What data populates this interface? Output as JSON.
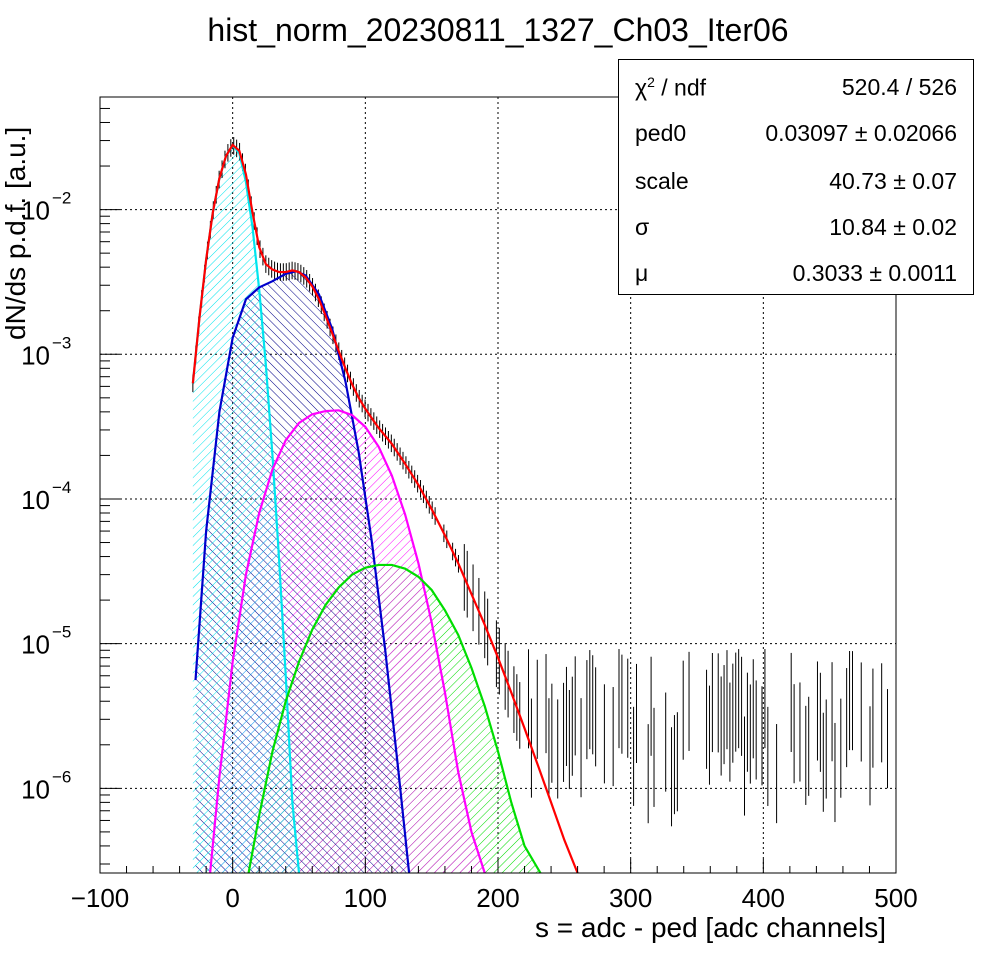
{
  "chart_data": {
    "type": "line",
    "title": "hist_norm_20230811_1327_Ch03_Iter06",
    "xlabel": "s = adc - ped [adc channels]",
    "ylabel": "dN/ds p.d.f. [a.u.]",
    "xlim": [
      -100,
      500
    ],
    "ylim": [
      2.6e-07,
      0.06
    ],
    "y_scale": "log",
    "grid": true,
    "x_ticks": [
      "−100",
      "0",
      "100",
      "200",
      "300",
      "400",
      "500"
    ],
    "y_ticks": [
      {
        "base": "10",
        "exp": "−2"
      },
      {
        "base": "10",
        "exp": "−3"
      },
      {
        "base": "10",
        "exp": "−4"
      },
      {
        "base": "10",
        "exp": "−5"
      },
      {
        "base": "10",
        "exp": "−6"
      }
    ],
    "series": [
      {
        "color": "#ff0000",
        "kind": "total fit",
        "points": [
          [
            -30,
            0.00063
          ],
          [
            -25,
            0.0018
          ],
          [
            -20,
            0.0045
          ],
          [
            -15,
            0.0095
          ],
          [
            -10,
            0.0165
          ],
          [
            -5,
            0.0235
          ],
          [
            0,
            0.028
          ],
          [
            5,
            0.0255
          ],
          [
            10,
            0.0175
          ],
          [
            15,
            0.0095
          ],
          [
            20,
            0.0055
          ],
          [
            25,
            0.0042
          ],
          [
            30,
            0.00385
          ],
          [
            35,
            0.0037
          ],
          [
            40,
            0.0037
          ],
          [
            45,
            0.0038
          ],
          [
            50,
            0.0037
          ],
          [
            55,
            0.0034
          ],
          [
            60,
            0.00295
          ],
          [
            65,
            0.0024
          ],
          [
            70,
            0.00185
          ],
          [
            75,
            0.0014
          ],
          [
            80,
            0.00105
          ],
          [
            85,
            0.0008
          ],
          [
            90,
            0.00062
          ],
          [
            95,
            0.0005
          ],
          [
            100,
            0.00042
          ],
          [
            105,
            0.00036
          ],
          [
            110,
            0.00031
          ],
          [
            120,
            0.00024
          ],
          [
            130,
            0.000175
          ],
          [
            140,
            0.000125
          ],
          [
            150,
            8.5e-05
          ],
          [
            160,
            5.6e-05
          ],
          [
            170,
            3.6e-05
          ],
          [
            180,
            2.2e-05
          ],
          [
            190,
            1.35e-05
          ],
          [
            200,
            8e-06
          ],
          [
            210,
            4.6e-06
          ],
          [
            220,
            2.6e-06
          ],
          [
            230,
            1.45e-06
          ],
          [
            240,
            8e-07
          ],
          [
            250,
            4.4e-07
          ],
          [
            260,
            2.6e-07
          ]
        ]
      },
      {
        "color": "#00e5ee",
        "kind": "0 p.e. component",
        "fill": "hatched",
        "points": [
          [
            -30,
            0.00063
          ],
          [
            -25,
            0.0018
          ],
          [
            -20,
            0.0045
          ],
          [
            -15,
            0.0095
          ],
          [
            -10,
            0.0165
          ],
          [
            -5,
            0.0235
          ],
          [
            0,
            0.0278
          ],
          [
            5,
            0.0245
          ],
          [
            10,
            0.0155
          ],
          [
            15,
            0.0075
          ],
          [
            20,
            0.0028
          ],
          [
            25,
            0.00085
          ],
          [
            30,
            0.0002
          ],
          [
            35,
            3.8e-05
          ],
          [
            40,
            6e-06
          ],
          [
            45,
            8e-07
          ],
          [
            50,
            2.6e-07
          ]
        ]
      },
      {
        "color": "#0000cc",
        "kind": "1 p.e. component",
        "fill": "hatched",
        "points": [
          [
            -28,
            5.6e-06
          ],
          [
            -20,
            6e-05
          ],
          [
            -10,
            0.0004
          ],
          [
            0,
            0.0013
          ],
          [
            10,
            0.0024
          ],
          [
            20,
            0.0029
          ],
          [
            30,
            0.0032
          ],
          [
            40,
            0.0036
          ],
          [
            48,
            0.00375
          ],
          [
            55,
            0.0035
          ],
          [
            65,
            0.0026
          ],
          [
            75,
            0.0015
          ],
          [
            85,
            0.00065
          ],
          [
            95,
            0.00021
          ],
          [
            105,
            5e-05
          ],
          [
            115,
            9e-06
          ],
          [
            125,
            1.3e-06
          ],
          [
            133,
            2.6e-07
          ]
        ]
      },
      {
        "color": "#ff00ff",
        "kind": "2 p.e. component",
        "fill": "hatched",
        "points": [
          [
            -17,
            2.6e-07
          ],
          [
            -10,
            1.2e-06
          ],
          [
            0,
            7.5e-06
          ],
          [
            10,
            3e-05
          ],
          [
            20,
            8e-05
          ],
          [
            30,
            0.00016
          ],
          [
            40,
            0.000255
          ],
          [
            50,
            0.000335
          ],
          [
            60,
            0.000385
          ],
          [
            70,
            0.000405
          ],
          [
            80,
            0.00041
          ],
          [
            90,
            0.00038
          ],
          [
            100,
            0.000315
          ],
          [
            110,
            0.00023
          ],
          [
            120,
            0.000145
          ],
          [
            130,
            7.8e-05
          ],
          [
            140,
            3.6e-05
          ],
          [
            150,
            1.4e-05
          ],
          [
            160,
            4.6e-06
          ],
          [
            170,
            1.3e-06
          ],
          [
            180,
            5e-07
          ],
          [
            190,
            2.6e-07
          ]
        ]
      },
      {
        "color": "#00dd00",
        "kind": "3 p.e. component",
        "fill": "hatched",
        "points": [
          [
            12,
            2.6e-07
          ],
          [
            20,
            6.5e-07
          ],
          [
            30,
            1.8e-06
          ],
          [
            40,
            4e-06
          ],
          [
            50,
            7.5e-06
          ],
          [
            60,
            1.25e-05
          ],
          [
            70,
            1.85e-05
          ],
          [
            80,
            2.45e-05
          ],
          [
            90,
            3e-05
          ],
          [
            100,
            3.35e-05
          ],
          [
            110,
            3.5e-05
          ],
          [
            120,
            3.5e-05
          ],
          [
            130,
            3.3e-05
          ],
          [
            140,
            2.9e-05
          ],
          [
            150,
            2.35e-05
          ],
          [
            160,
            1.7e-05
          ],
          [
            170,
            1.15e-05
          ],
          [
            180,
            6.8e-06
          ],
          [
            190,
            3.7e-06
          ],
          [
            200,
            1.8e-06
          ],
          [
            210,
            8e-07
          ],
          [
            220,
            4e-07
          ],
          [
            232,
            2.6e-07
          ]
        ]
      }
    ]
  },
  "stats": {
    "chi2_label": "χ",
    "chi2_sup": "2",
    "chi2_tail": " / ndf",
    "chi2_value": "520.4 / 526",
    "ped0_label": "ped0",
    "ped0_value": "0.03097 ± 0.02066",
    "scale_label": "scale",
    "scale_value": "40.73 ± 0.07",
    "sigma_label": "σ",
    "sigma_value": "10.84 ± 0.02",
    "mu_label": "μ",
    "mu_value": "0.3033 ± 0.0011"
  }
}
